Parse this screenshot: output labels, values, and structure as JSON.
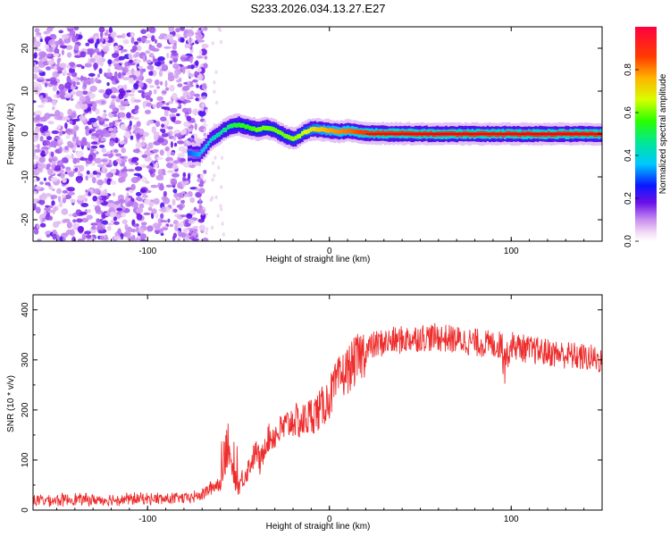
{
  "title": "S233.2026.034.13.27.E27",
  "chart_data": [
    {
      "type": "heatmap",
      "xlabel": "Height of straight line (km)",
      "ylabel": "Frequency (Hz)",
      "xlim": [
        -163,
        150
      ],
      "ylim": [
        -25,
        25
      ],
      "xticks": [
        -100,
        0,
        100
      ],
      "yticks": [
        -20,
        -10,
        0,
        10,
        20
      ],
      "colorbar": {
        "label": "Normalized spectral amplitude",
        "range": [
          0,
          1
        ],
        "ticks": [
          0,
          0.2,
          0.4,
          0.6,
          0.8
        ],
        "tick_labels": [
          "0.0",
          "0.2",
          "0.4",
          "0.6",
          "0.8"
        ]
      },
      "noise_region_x": [
        -163,
        -72
      ],
      "signal_track": [
        {
          "x": -78,
          "f": -4.5,
          "a": 0.3
        },
        {
          "x": -72,
          "f": -4.8,
          "a": 0.35
        },
        {
          "x": -66,
          "f": -1.5,
          "a": 0.4
        },
        {
          "x": -60,
          "f": 0.5,
          "a": 0.45
        },
        {
          "x": -55,
          "f": 1.8,
          "a": 0.5
        },
        {
          "x": -50,
          "f": 2.2,
          "a": 0.55
        },
        {
          "x": -45,
          "f": 1.5,
          "a": 0.55
        },
        {
          "x": -40,
          "f": 1.0,
          "a": 0.6
        },
        {
          "x": -35,
          "f": 1.5,
          "a": 0.6
        },
        {
          "x": -30,
          "f": 0.8,
          "a": 0.6
        },
        {
          "x": -25,
          "f": -0.5,
          "a": 0.6
        },
        {
          "x": -20,
          "f": -1.2,
          "a": 0.62
        },
        {
          "x": -15,
          "f": 0.2,
          "a": 0.65
        },
        {
          "x": -10,
          "f": 1.2,
          "a": 0.7
        },
        {
          "x": -5,
          "f": 1.0,
          "a": 0.75
        },
        {
          "x": 0,
          "f": 0.8,
          "a": 0.78
        },
        {
          "x": 5,
          "f": 0.5,
          "a": 0.8
        },
        {
          "x": 10,
          "f": 0.8,
          "a": 0.82
        },
        {
          "x": 15,
          "f": 0.4,
          "a": 0.85
        },
        {
          "x": 20,
          "f": 0.2,
          "a": 0.88
        },
        {
          "x": 30,
          "f": 0.1,
          "a": 0.9
        },
        {
          "x": 60,
          "f": 0.0,
          "a": 0.92
        },
        {
          "x": 90,
          "f": 0.0,
          "a": 0.9
        },
        {
          "x": 120,
          "f": 0.0,
          "a": 0.92
        },
        {
          "x": 150,
          "f": 0.0,
          "a": 0.9
        }
      ]
    },
    {
      "type": "line",
      "xlabel": "Height of straight line (km)",
      "ylabel": "SNR (10 * v/v)",
      "xlim": [
        -163,
        150
      ],
      "ylim": [
        0,
        430
      ],
      "xticks": [
        -100,
        0,
        100
      ],
      "yticks": [
        0,
        100,
        200,
        300,
        400
      ],
      "color": "#ee2c2c",
      "series": [
        {
          "name": "SNR",
          "x": [
            -163,
            -150,
            -140,
            -130,
            -120,
            -110,
            -100,
            -90,
            -80,
            -75,
            -70,
            -65,
            -60,
            -55,
            -52,
            -50,
            -45,
            -40,
            -38,
            -35,
            -30,
            -25,
            -20,
            -15,
            -10,
            -5,
            0,
            5,
            10,
            15,
            20,
            25,
            30,
            40,
            50,
            60,
            70,
            80,
            90,
            95,
            97,
            100,
            110,
            120,
            130,
            140,
            150
          ],
          "y": [
            20,
            20,
            22,
            20,
            21,
            22,
            23,
            22,
            24,
            26,
            30,
            45,
            55,
            110,
            60,
            50,
            80,
            120,
            90,
            140,
            150,
            165,
            180,
            175,
            190,
            200,
            225,
            260,
            280,
            300,
            320,
            330,
            335,
            340,
            345,
            345,
            340,
            335,
            330,
            330,
            300,
            330,
            320,
            315,
            310,
            305,
            300
          ]
        }
      ]
    }
  ]
}
